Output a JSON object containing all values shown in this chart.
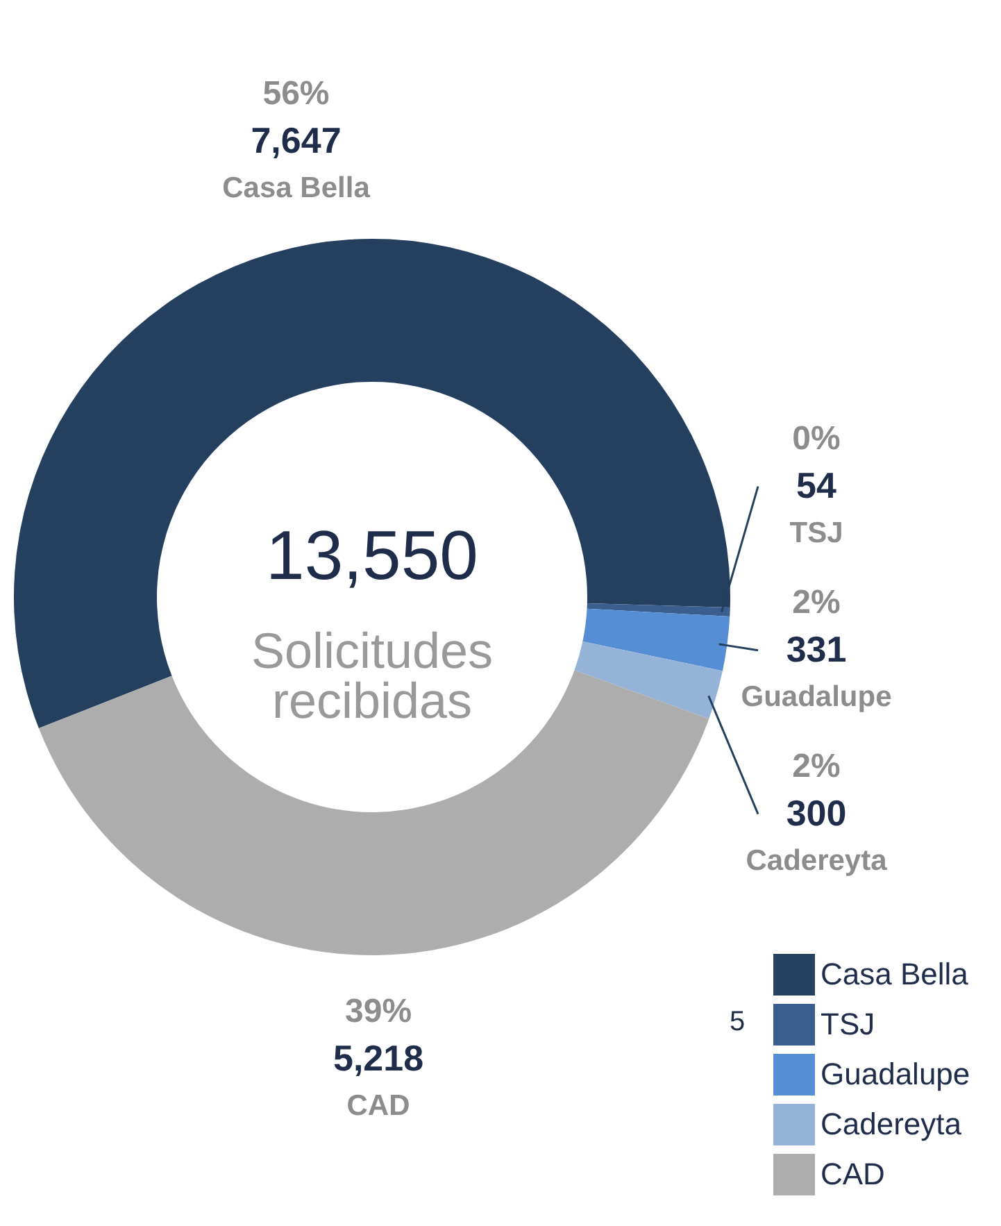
{
  "chart_data": {
    "type": "donut",
    "categories": [
      "Casa Bella",
      "TSJ",
      "Guadalupe",
      "Cadereyta",
      "CAD"
    ],
    "values": [
      7647,
      54,
      331,
      300,
      5218
    ],
    "colors": [
      "#253f5f",
      "#3a5f8e",
      "#558ed5",
      "#95b3d7",
      "#adadad"
    ],
    "value_labels": [
      "7,647",
      "54",
      "331",
      "300",
      "5,218"
    ],
    "legend": "bottom right",
    "annotations": [
      "13,550",
      "Solicitudes recibidas",
      "5",
      {
        "text": "56%",
        "x": "Casa Bella"
      },
      {
        "text": "0%",
        "x": "TSJ"
      },
      {
        "text": "2%",
        "x": "Guadalupe"
      },
      {
        "text": "2%",
        "x": "Cadereyta"
      },
      {
        "text": "39%",
        "x": "CAD"
      }
    ]
  }
}
